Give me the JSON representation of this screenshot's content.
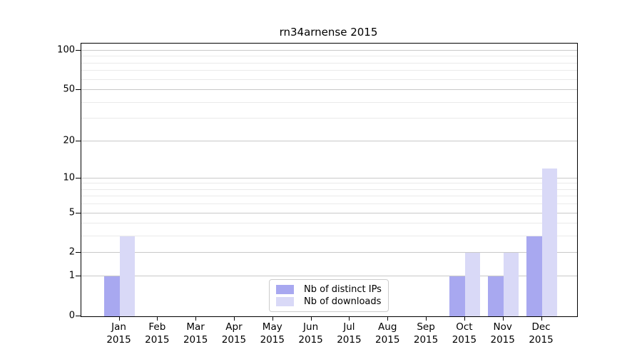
{
  "chart_data": {
    "type": "bar",
    "title": "rn34arnense 2015",
    "year": "2015",
    "months": [
      "Jan",
      "Feb",
      "Mar",
      "Apr",
      "May",
      "Jun",
      "Jul",
      "Aug",
      "Sep",
      "Oct",
      "Nov",
      "Dec"
    ],
    "series": [
      {
        "name": "Nb of distinct IPs",
        "color": "#a8a8f0",
        "values": [
          1,
          0,
          0,
          0,
          0,
          0,
          0,
          0,
          0,
          1,
          1,
          3
        ]
      },
      {
        "name": "Nb of downloads",
        "color": "#d9d9f7",
        "values": [
          3,
          0,
          0,
          0,
          0,
          0,
          0,
          0,
          0,
          2,
          2,
          12
        ]
      }
    ],
    "yticks": [
      0,
      1,
      2,
      5,
      10,
      20,
      50,
      100
    ],
    "yticks_minor": [
      3,
      4,
      6,
      7,
      8,
      9,
      30,
      40,
      60,
      70,
      80,
      90
    ],
    "ylim": [
      0,
      100
    ],
    "yscale": "symlog",
    "grid": "horizontal",
    "legend_position": "bottom-center",
    "colors": {
      "grid_major": "#c9c9c9",
      "grid_minor": "#eaeaea",
      "spine": "#000000",
      "background": "#ffffff"
    }
  }
}
